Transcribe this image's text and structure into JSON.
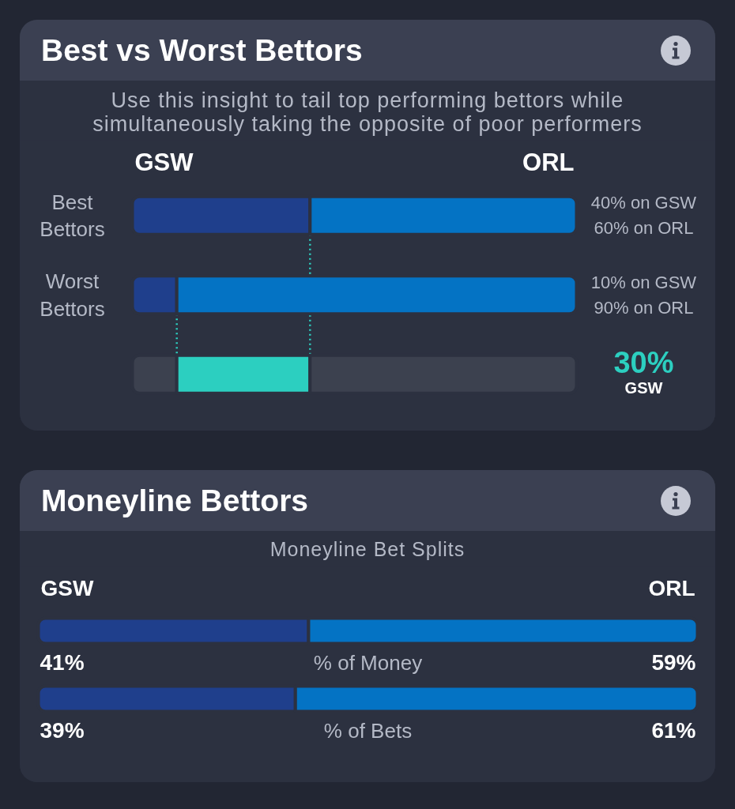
{
  "chart_data": [
    {
      "type": "bar",
      "orientation": "horizontal",
      "stacked": true,
      "title": "Best vs Worst Bettors",
      "subtitle": "Use this insight to tail top performing bettors while simultaneously taking the opposite of poor performers",
      "categories": [
        "Best Bettors",
        "Worst Bettors",
        null
      ],
      "series": [
        {
          "name": "GSW",
          "color": "#1f3f8c",
          "values": [
            40,
            10,
            null
          ],
          "value_labels": [
            "40% on GSW",
            "10% on GSW",
            null
          ]
        },
        {
          "name": "ORL",
          "color": "#0473c4",
          "values": [
            60,
            90,
            null
          ],
          "value_labels": [
            "60% on ORL",
            "90% on ORL",
            null
          ]
        },
        {
          "color": "#3c414f",
          "values": [
            null,
            null,
            10
          ]
        },
        {
          "color": "#2ccfc0",
          "values": [
            null,
            null,
            30
          ]
        },
        {
          "color": "#3c414f",
          "values": [
            null,
            null,
            60
          ]
        }
      ],
      "xlim": [
        0,
        100
      ],
      "tick_labels": "y",
      "ref_lines": [
        {
          "axis": "x",
          "value": 40,
          "color": "#2ccfc0",
          "line_style": "dotted"
        },
        {
          "axis": "x",
          "value": 10,
          "color": "#2ccfc0",
          "line_style": "dotted"
        }
      ],
      "annotations": [
        "30%",
        "GSW"
      ]
    },
    {
      "type": "bar",
      "orientation": "horizontal",
      "stacked": true,
      "title": "Moneyline Bettors",
      "subtitle": "Moneyline Bet Splits",
      "categories": [
        "% of Money",
        "% of Bets"
      ],
      "series": [
        {
          "name": "GSW",
          "color": "#1f3f8c",
          "values": [
            41,
            39
          ],
          "value_labels": [
            "41%",
            "39%"
          ]
        },
        {
          "name": "ORL",
          "color": "#0473c4",
          "values": [
            59,
            61
          ],
          "value_labels": [
            "59%",
            "61%"
          ]
        }
      ],
      "xlim": [
        0,
        100
      ],
      "tick_labels": "y"
    }
  ]
}
